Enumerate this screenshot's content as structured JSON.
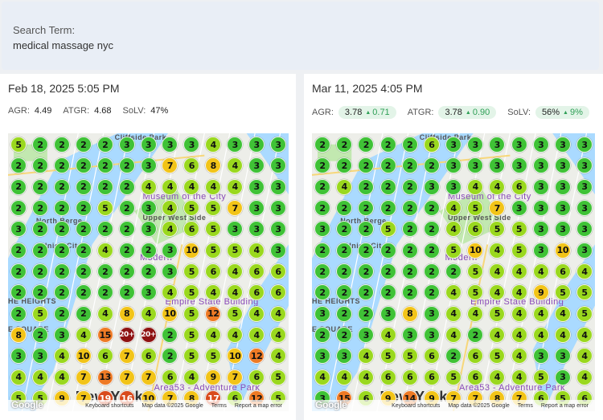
{
  "search": {
    "label": "Search Term:",
    "value": "medical massage nyc"
  },
  "panels": [
    {
      "date": "Feb 18, 2025 5:05 PM",
      "metrics": [
        {
          "key": "AGR:",
          "value": "4.49",
          "delta": ""
        },
        {
          "key": "ATGR:",
          "value": "4.68",
          "delta": ""
        },
        {
          "key": "SoLV:",
          "value": "47%",
          "delta": ""
        }
      ],
      "grid": [
        [
          "5",
          "2",
          "2",
          "2",
          "2",
          "3",
          "3",
          "3",
          "3",
          "4",
          "3",
          "3",
          "3"
        ],
        [
          "2",
          "2",
          "2",
          "2",
          "2",
          "2",
          "3",
          "7",
          "6",
          "8",
          "4",
          "3",
          "3"
        ],
        [
          "2",
          "2",
          "2",
          "2",
          "2",
          "2",
          "4",
          "4",
          "4",
          "4",
          "4",
          "3",
          "3"
        ],
        [
          "2",
          "2",
          "2",
          "2",
          "5",
          "2",
          "3",
          "4",
          "5",
          "5",
          "7",
          "3",
          "3"
        ],
        [
          "3",
          "2",
          "2",
          "2",
          "2",
          "2",
          "3",
          "4",
          "6",
          "5",
          "3",
          "3",
          "3"
        ],
        [
          "2",
          "2",
          "2",
          "2",
          "4",
          "2",
          "2",
          "3",
          "10",
          "5",
          "5",
          "4",
          "3"
        ],
        [
          "2",
          "2",
          "2",
          "2",
          "2",
          "2",
          "2",
          "3",
          "5",
          "6",
          "4",
          "6",
          "6"
        ],
        [
          "2",
          "2",
          "2",
          "2",
          "2",
          "2",
          "3",
          "4",
          "5",
          "4",
          "4",
          "6",
          "6"
        ],
        [
          "2",
          "5",
          "2",
          "2",
          "4",
          "8",
          "4",
          "10",
          "5",
          "12",
          "5",
          "4",
          "4"
        ],
        [
          "8",
          "2",
          "3",
          "4",
          "15",
          "20+",
          "20+",
          "2",
          "5",
          "4",
          "4",
          "4",
          "4"
        ],
        [
          "3",
          "3",
          "4",
          "10",
          "6",
          "7",
          "6",
          "2",
          "5",
          "5",
          "10",
          "12",
          "4"
        ],
        [
          "4",
          "4",
          "4",
          "7",
          "13",
          "7",
          "7",
          "6",
          "4",
          "9",
          "7",
          "6",
          "5"
        ],
        [
          "5",
          "5",
          "9",
          "7",
          "19",
          "16",
          "10",
          "7",
          "8",
          "17",
          "6",
          "12",
          "5"
        ]
      ],
      "map_labels": [
        "Cliffside Park",
        "North Berge",
        "Union Cit",
        "Museum of the City",
        "Upper West Side",
        "Modern",
        "Empire State Building",
        "New York",
        "Area53 - Adventure Park",
        "HE HEIGHTS",
        "E SQUARE"
      ]
    },
    {
      "date": "Mar 11, 2025 4:05 PM",
      "metrics": [
        {
          "key": "AGR:",
          "value": "3.78",
          "delta": "0.71"
        },
        {
          "key": "ATGR:",
          "value": "3.78",
          "delta": "0.90"
        },
        {
          "key": "SoLV:",
          "value": "56%",
          "delta": "9%"
        }
      ],
      "grid": [
        [
          "2",
          "2",
          "2",
          "2",
          "2",
          "6",
          "3",
          "3",
          "3",
          "3",
          "3",
          "3",
          "3"
        ],
        [
          "2",
          "2",
          "2",
          "2",
          "2",
          "2",
          "3",
          "3",
          "3",
          "3",
          "3",
          "3",
          "3"
        ],
        [
          "2",
          "4",
          "2",
          "2",
          "2",
          "3",
          "3",
          "4",
          "4",
          "6",
          "3",
          "3",
          "3"
        ],
        [
          "2",
          "2",
          "2",
          "2",
          "2",
          "2",
          "4",
          "5",
          "7",
          "3",
          "3",
          "3",
          "3"
        ],
        [
          "3",
          "2",
          "2",
          "5",
          "2",
          "2",
          "4",
          "6",
          "5",
          "5",
          "3",
          "3",
          "3"
        ],
        [
          "2",
          "2",
          "2",
          "2",
          "2",
          "2",
          "5",
          "10",
          "4",
          "5",
          "3",
          "10",
          "3"
        ],
        [
          "2",
          "2",
          "2",
          "2",
          "2",
          "2",
          "2",
          "5",
          "4",
          "4",
          "4",
          "6",
          "4"
        ],
        [
          "2",
          "2",
          "2",
          "2",
          "2",
          "2",
          "4",
          "5",
          "4",
          "4",
          "9",
          "5",
          "5"
        ],
        [
          "3",
          "2",
          "2",
          "3",
          "8",
          "3",
          "4",
          "4",
          "5",
          "4",
          "4",
          "4",
          "5"
        ],
        [
          "2",
          "2",
          "3",
          "4",
          "3",
          "3",
          "4",
          "2",
          "4",
          "4",
          "4",
          "4",
          "4"
        ],
        [
          "3",
          "3",
          "4",
          "5",
          "5",
          "6",
          "2",
          "6",
          "5",
          "4",
          "3",
          "3",
          "4"
        ],
        [
          "4",
          "4",
          "4",
          "6",
          "6",
          "6",
          "5",
          "6",
          "4",
          "4",
          "5",
          "3",
          "4"
        ],
        [
          "3",
          "15",
          "6",
          "9",
          "14",
          "9",
          "7",
          "7",
          "8",
          "7",
          "6",
          "5",
          "6"
        ]
      ],
      "map_labels": [
        "Cliffside Park",
        "North Berge",
        "Union Cit",
        "Museum of the City",
        "Upper West Side",
        "Modern",
        "Empire State Building",
        "New York",
        "Area53 - Adventure Park",
        "HE HEIGHTS",
        "E SQUARE"
      ]
    }
  ],
  "map_footer": {
    "logo": "Google",
    "shortcuts": "Keyboard shortcuts",
    "mapdata": "Map data ©2025 Google",
    "terms": "Terms",
    "report": "Report a map error"
  },
  "colors": {
    "rank_1_3": "#3fc236",
    "rank_4_6": "#9ad81e",
    "rank_7_10": "#f2c418",
    "rank_11_15": "#ee7a25",
    "rank_16_19": "#d94a1c",
    "rank_20_plus": "#8e1212",
    "water": "#aadaff",
    "park": "#c2e8b0"
  }
}
